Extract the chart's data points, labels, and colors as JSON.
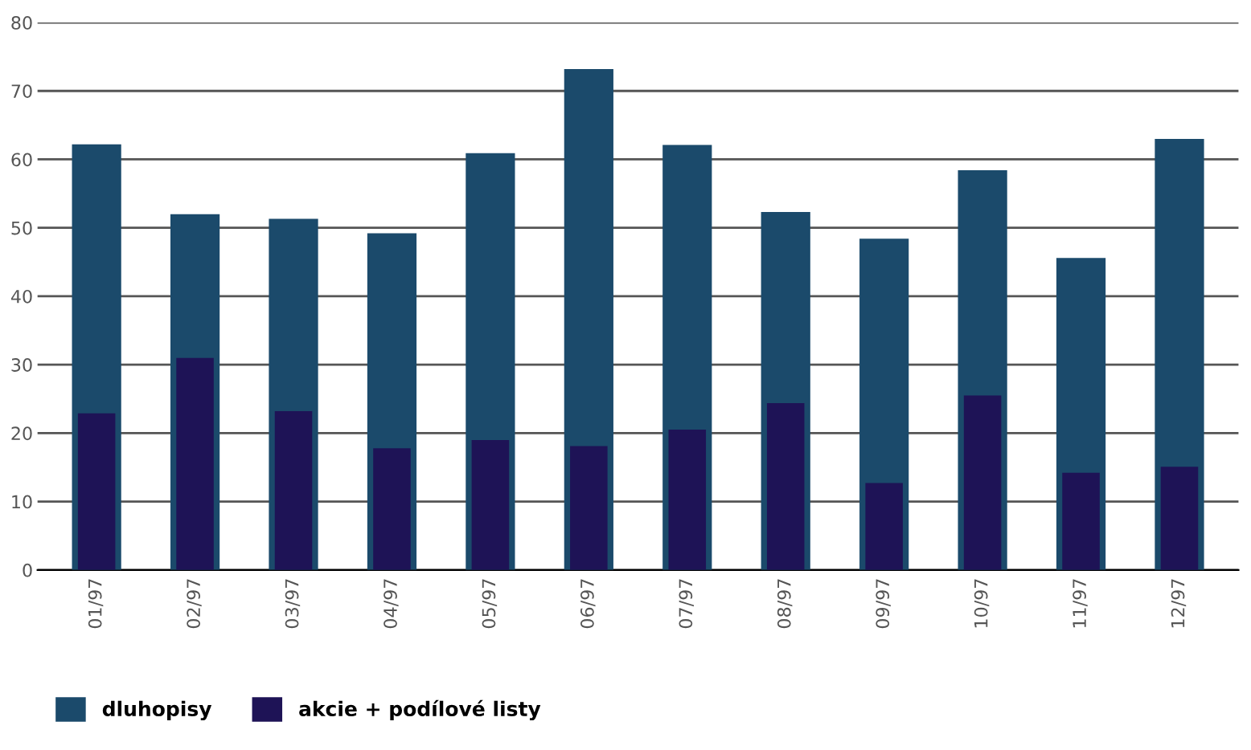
{
  "chart_data": {
    "type": "bar",
    "categories": [
      "01/97",
      "02/97",
      "03/97",
      "04/97",
      "05/97",
      "06/97",
      "07/97",
      "08/97",
      "09/97",
      "10/97",
      "11/97",
      "12/97"
    ],
    "series": [
      {
        "name": "dluhopisy",
        "color": "#1b4a6b",
        "values": [
          62.2,
          52.0,
          51.3,
          49.2,
          60.9,
          73.2,
          62.1,
          52.3,
          48.4,
          58.4,
          45.6,
          63.0
        ]
      },
      {
        "name": "akcie + podílové listy",
        "color": "#1e1356",
        "values": [
          22.9,
          31.0,
          23.2,
          17.8,
          19.0,
          18.1,
          20.5,
          24.4,
          12.7,
          25.5,
          14.2,
          15.1
        ]
      }
    ],
    "ylim": [
      0,
      80
    ],
    "yticks": [
      0,
      10,
      20,
      30,
      40,
      50,
      60,
      70,
      80
    ],
    "grid": "y",
    "legend": "bottom left"
  }
}
